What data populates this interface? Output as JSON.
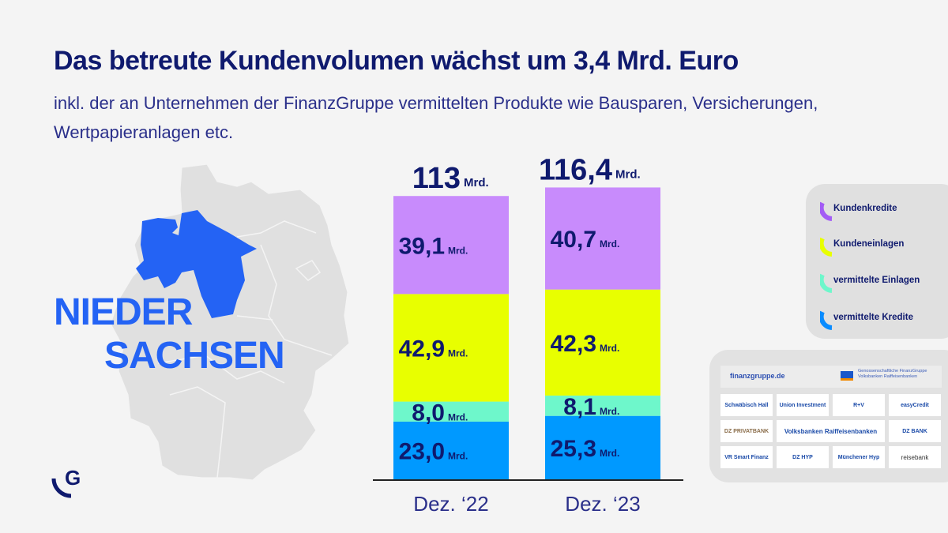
{
  "header": {
    "title": "Das betreute Kundenvolumen wächst um 3,4 Mrd. Euro",
    "subtitle": "inkl. der an Unternehmen der FinanzGruppe vermittelten Produkte wie Bausparen, Versicherungen, Wertpapieranlagen etc."
  },
  "region": {
    "line1": "NIEDER",
    "line2": "SACHSEN",
    "highlight_color": "#2463f4",
    "map_color": "#e0e0e0"
  },
  "logo": {
    "icon": "genossenschaftsverband-g-logo",
    "letter": "G"
  },
  "chart_data": {
    "type": "bar",
    "stacked": true,
    "title": "Das betreute Kundenvolumen wächst um 3,4 Mrd. Euro",
    "xlabel": "",
    "ylabel": "",
    "unit": "Mrd.",
    "categories": [
      "Dez. ‘22",
      "Dez. ‘23"
    ],
    "totals": [
      113,
      116.4
    ],
    "total_labels": [
      "113",
      "116,4"
    ],
    "series": [
      {
        "name": "vermittelte Kredite",
        "color": "#0099ff",
        "values": [
          23.0,
          25.3
        ],
        "labels": [
          "23,0",
          "25,3"
        ]
      },
      {
        "name": "vermittelte Einlagen",
        "color": "#6ef7cb",
        "values": [
          8.0,
          8.1
        ],
        "labels": [
          "8,0",
          "8,1"
        ]
      },
      {
        "name": "Kundeneinlagen",
        "color": "#e8ff00",
        "values": [
          42.9,
          42.3
        ],
        "labels": [
          "42,9",
          "42,3"
        ]
      },
      {
        "name": "Kundenkredite",
        "color": "#c88bfc",
        "values": [
          39.1,
          40.7
        ],
        "labels": [
          "39,1",
          "40,7"
        ]
      }
    ],
    "ylim": [
      0,
      120
    ],
    "grid": false,
    "legend_position": "right"
  },
  "legend": {
    "items": [
      {
        "label": "Kundenkredite",
        "color": "#a35cf5"
      },
      {
        "label": "Kundeneinlagen",
        "color": "#e8ff00"
      },
      {
        "label": "vermittelte Einlagen",
        "color": "#6ef7cb"
      },
      {
        "label": "vermittelte Kredite",
        "color": "#0a8cff"
      }
    ]
  },
  "partners": {
    "domain": "finanzgruppe.de",
    "group_name": "Genossenschaftliche FinanzGruppe Volksbanken Raiffeisenbanken",
    "logos": [
      "Schwäbisch Hall",
      "Union Investment",
      "R+V",
      "easyCredit",
      "DZ PRIVATBANK",
      "Volksbanken Raiffeisenbanken",
      "DZ BANK",
      "VR Smart Finanz",
      "DZ HYP",
      "Münchener Hyp",
      "reisebank"
    ]
  }
}
